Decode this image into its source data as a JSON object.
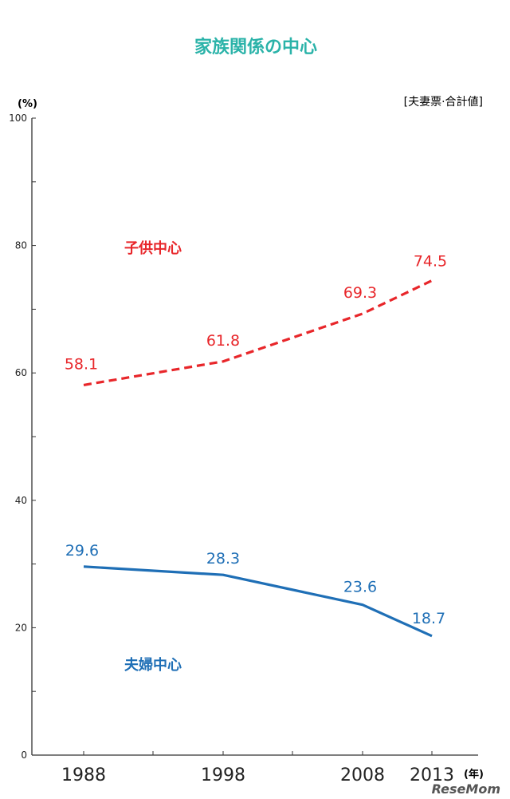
{
  "chart_data": {
    "type": "line",
    "title": "家族関係の中心",
    "y_unit_label": "(%)",
    "x_unit_label": "(年)",
    "note": "[夫妻票·合計値]",
    "x": [
      1988,
      1998,
      2008,
      2013
    ],
    "x_tick_labels": [
      "1988",
      "1998",
      "2008",
      "2013"
    ],
    "y_ticks": [
      0,
      20,
      40,
      60,
      80,
      100
    ],
    "ylim": [
      0,
      100
    ],
    "grid": false,
    "series": [
      {
        "name": "子供中心",
        "values": [
          58.1,
          61.8,
          69.3,
          74.5
        ],
        "color": "#e8262a",
        "style": "dashed"
      },
      {
        "name": "夫婦中心",
        "values": [
          29.6,
          28.3,
          23.6,
          18.7
        ],
        "color": "#1f6fb6",
        "style": "solid"
      }
    ],
    "title_color": "#2bb3a9",
    "watermark": "ReseMom"
  }
}
